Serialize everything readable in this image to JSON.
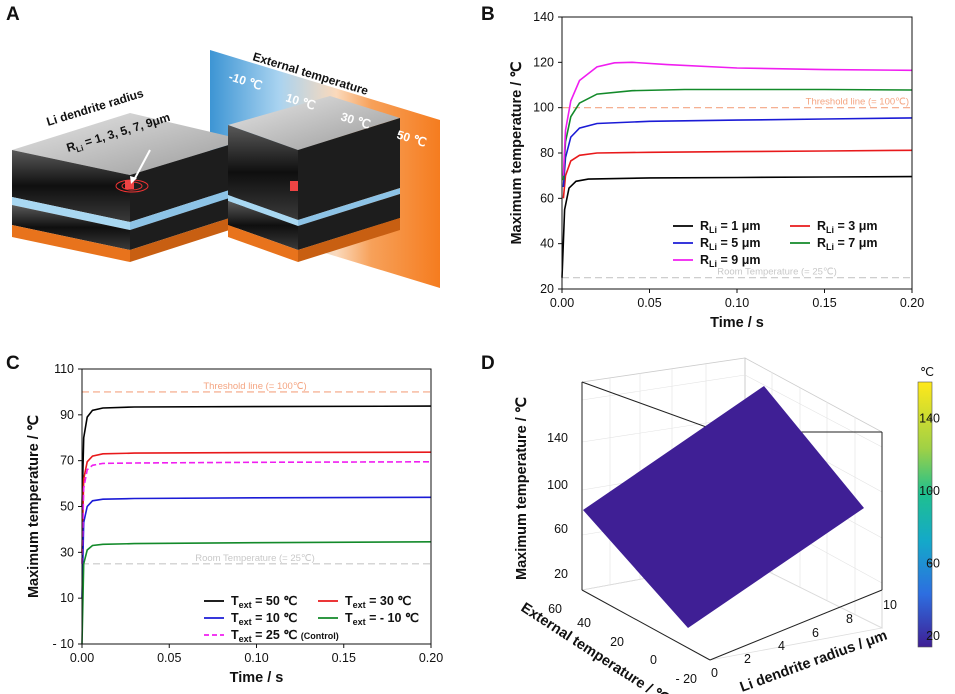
{
  "panels": {
    "a": "A",
    "b": "B",
    "c": "C",
    "d": "D"
  },
  "illustration": {
    "radius_title": "Li dendrite radius",
    "radius_values": "R",
    "radius_sub": "Li",
    "radius_list": " = 1, 3, 5, 7, 9μm",
    "ext_title": "External temperature",
    "band_labels": [
      "-10 ℃",
      "10 ℃",
      "30 ℃",
      "50 ℃"
    ],
    "colors": {
      "cold": "#3d95d4",
      "light": "#a9d3f0",
      "warm": "#f7a15a",
      "hot": "#f57c1f"
    }
  },
  "chart_data": [
    {
      "id": "B",
      "type": "line",
      "xlabel": "Time / s",
      "ylabel": "Maximum temperature / ℃",
      "xlim": [
        0,
        0.2
      ],
      "ylim": [
        20,
        140
      ],
      "xticks": [
        "0.00",
        "0.05",
        "0.10",
        "0.15",
        "0.20"
      ],
      "xtick_values": [
        0,
        0.05,
        0.1,
        0.15,
        0.2
      ],
      "yticks": [
        20,
        40,
        60,
        80,
        100,
        120,
        140
      ],
      "reference_lines": [
        {
          "label": "Threshold line (= 100℃)",
          "y": 100,
          "color": "#f4a582"
        },
        {
          "label": "Room Temperature (= 25℃)",
          "y": 25,
          "color": "#c8c8c8"
        }
      ],
      "series": [
        {
          "name": "R",
          "sub": "Li",
          "suffix": " = 1 μm",
          "color": "#000000",
          "x": [
            0,
            0.0015,
            0.004,
            0.008,
            0.015,
            0.05,
            0.1,
            0.15,
            0.2
          ],
          "y": [
            25,
            55,
            64.5,
            67.5,
            68.5,
            69,
            69.2,
            69.4,
            69.6
          ]
        },
        {
          "name": "R",
          "sub": "Li",
          "suffix": " = 3 μm",
          "color": "#e8191b",
          "x": [
            0.0008,
            0.002,
            0.005,
            0.01,
            0.02,
            0.05,
            0.1,
            0.15,
            0.2
          ],
          "y": [
            60,
            70,
            76.5,
            79,
            80,
            80.3,
            80.6,
            80.9,
            81.2
          ]
        },
        {
          "name": "R",
          "sub": "Li",
          "suffix": " = 5 μm",
          "color": "#1b1bd6",
          "x": [
            0.0008,
            0.002,
            0.005,
            0.01,
            0.02,
            0.05,
            0.1,
            0.15,
            0.2
          ],
          "y": [
            65,
            78,
            87,
            91,
            93,
            94,
            94.5,
            95,
            95.5
          ]
        },
        {
          "name": "R",
          "sub": "Li",
          "suffix": " = 7 μm",
          "color": "#138a2a",
          "x": [
            0.0008,
            0.002,
            0.005,
            0.01,
            0.02,
            0.04,
            0.07,
            0.1,
            0.15,
            0.2
          ],
          "y": [
            68,
            85,
            96,
            102,
            106,
            107.5,
            108,
            108,
            108,
            107.8
          ]
        },
        {
          "name": "R",
          "sub": "Li",
          "suffix": " = 9 μm",
          "color": "#f01ef0",
          "x": [
            0.0008,
            0.002,
            0.005,
            0.01,
            0.02,
            0.03,
            0.04,
            0.06,
            0.1,
            0.15,
            0.2
          ],
          "y": [
            70,
            90,
            103,
            112,
            118,
            119.8,
            120,
            119,
            117.5,
            116.8,
            116.5
          ]
        }
      ]
    },
    {
      "id": "C",
      "type": "line",
      "xlabel": "Time / s",
      "ylabel": "Maximum temperature / ℃",
      "xlim": [
        0,
        0.2
      ],
      "ylim": [
        -10,
        110
      ],
      "xticks": [
        "0.00",
        "0.05",
        "0.10",
        "0.15",
        "0.20"
      ],
      "xtick_values": [
        0,
        0.05,
        0.1,
        0.15,
        0.2
      ],
      "yticks": [
        "- 10",
        "10",
        "30",
        "50",
        "70",
        "90",
        "110"
      ],
      "ytick_values": [
        -10,
        10,
        30,
        50,
        70,
        90,
        110
      ],
      "reference_lines": [
        {
          "label": "Threshold line (= 100℃)",
          "y": 100,
          "color": "#f4a582"
        },
        {
          "label": "Room Temperature (= 25℃)",
          "y": 25,
          "color": "#c8c8c8"
        }
      ],
      "series": [
        {
          "name": "T",
          "sub": "ext",
          "suffix": " = 50 ℃",
          "color": "#000000",
          "dash": false,
          "x": [
            0,
            0.001,
            0.003,
            0.006,
            0.012,
            0.03,
            0.1,
            0.2
          ],
          "y": [
            50,
            80,
            89,
            92,
            93,
            93.4,
            93.6,
            93.8
          ]
        },
        {
          "name": "T",
          "sub": "ext",
          "suffix": " = 30 ℃",
          "color": "#e8191b",
          "dash": false,
          "x": [
            0,
            0.001,
            0.003,
            0.006,
            0.012,
            0.03,
            0.1,
            0.2
          ],
          "y": [
            30,
            62,
            69.5,
            72,
            73,
            73.3,
            73.5,
            73.7
          ]
        },
        {
          "name": "T",
          "sub": "ext",
          "suffix": " = 10 ℃",
          "color": "#1b1bd6",
          "dash": false,
          "x": [
            0,
            0.001,
            0.003,
            0.006,
            0.012,
            0.03,
            0.1,
            0.2
          ],
          "y": [
            10,
            43,
            50,
            52.5,
            53.2,
            53.5,
            53.8,
            54
          ]
        },
        {
          "name": "T",
          "sub": "ext",
          "suffix": " = - 10 ℃",
          "color": "#138a2a",
          "dash": false,
          "x": [
            0,
            0.001,
            0.003,
            0.006,
            0.012,
            0.03,
            0.1,
            0.2
          ],
          "y": [
            -10,
            25,
            31,
            33,
            33.5,
            33.8,
            34.2,
            34.6
          ]
        },
        {
          "name": "T",
          "sub": "ext",
          "suffix": " = 25 ℃ ",
          "note": "(Control)",
          "color": "#f01ef0",
          "dash": true,
          "x": [
            0,
            0.001,
            0.003,
            0.006,
            0.012,
            0.03,
            0.1,
            0.2
          ],
          "y": [
            25,
            58,
            66,
            68,
            68.8,
            69,
            69.3,
            69.5
          ]
        }
      ]
    },
    {
      "id": "D",
      "type": "surface",
      "xlabel": "Li dendrite radius / μm",
      "ylabel": "External temperature / ℃",
      "zlabel": "Maximum temperature / ℃",
      "xticks": [
        0,
        2,
        4,
        6,
        8,
        10
      ],
      "yticks": [
        "- 20",
        "0",
        "20",
        "40",
        "60"
      ],
      "zticks": [
        20,
        60,
        100,
        140
      ],
      "corners": [
        {
          "radius": 1,
          "ext_temp": -10,
          "max_temp": 16
        },
        {
          "radius": 1,
          "ext_temp": 50,
          "max_temp": 94
        },
        {
          "radius": 9,
          "ext_temp": 50,
          "max_temp": 160
        },
        {
          "radius": 9,
          "ext_temp": -10,
          "max_temp": 94
        }
      ],
      "colorbar": {
        "unit": "℃",
        "ticks": [
          20,
          60,
          100,
          140
        ],
        "range": [
          14,
          160
        ]
      }
    }
  ]
}
